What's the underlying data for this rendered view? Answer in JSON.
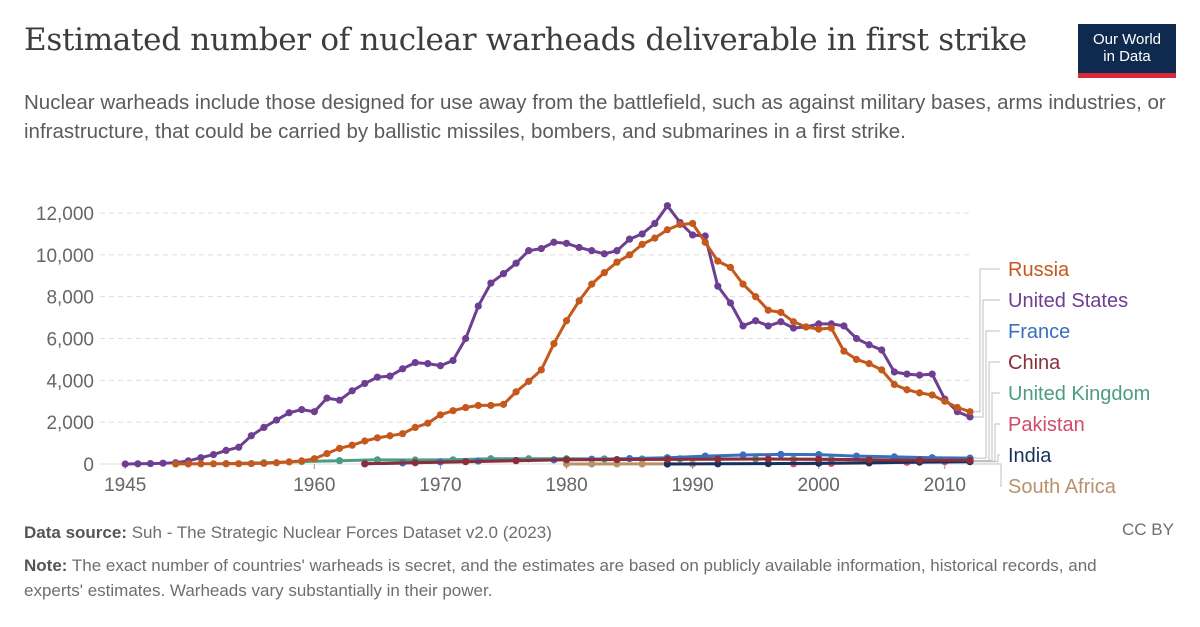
{
  "title": "Estimated number of nuclear warheads deliverable in first strike",
  "logo": {
    "line1": "Our World",
    "line2": "in Data",
    "bg": "#0f2a4f",
    "accent": "#d42a3a"
  },
  "subtitle": "Nuclear warheads include those designed for use away from the battlefield, such as against military bases, arms industries, or infrastructure, that could be carried by ballistic missiles, bombers, and submarines in a first strike.",
  "footer": {
    "source_label": "Data source:",
    "source_text": "Suh - The Strategic Nuclear Forces Dataset v2.0 (2023)",
    "license": "CC BY",
    "note_label": "Note:",
    "note_text": "The exact number of countries' warheads is secret, and the estimates are based on publicly available information, historical records, and experts' estimates. Warheads vary substantially in their power."
  },
  "chart_data": {
    "type": "line",
    "xlim": [
      1943,
      2012
    ],
    "ylim": [
      0,
      12000
    ],
    "x_ticks": [
      {
        "value": 1945,
        "label": "1945"
      },
      {
        "value": 1960,
        "label": "1960"
      },
      {
        "value": 1970,
        "label": "1970"
      },
      {
        "value": 1980,
        "label": "1980"
      },
      {
        "value": 1990,
        "label": "1990"
      },
      {
        "value": 2000,
        "label": "2000"
      },
      {
        "value": 2010,
        "label": "2010"
      }
    ],
    "y_ticks": [
      {
        "value": 0,
        "label": "0"
      },
      {
        "value": 2000,
        "label": "2,000"
      },
      {
        "value": 4000,
        "label": "4,000"
      },
      {
        "value": 6000,
        "label": "6,000"
      },
      {
        "value": 8000,
        "label": "8,000"
      },
      {
        "value": 10000,
        "label": "10,000"
      },
      {
        "value": 12000,
        "label": "12,000"
      }
    ],
    "grid": true,
    "legend": "right",
    "series": [
      {
        "name": "United Kingdom",
        "color": "#4c9c84",
        "x": [
          1953,
          1956,
          1959,
          1962,
          1965,
          1968,
          1971,
          1974,
          1977,
          1980,
          1983,
          1986,
          1989,
          1992,
          1995,
          1998,
          2001,
          2004,
          2007,
          2010,
          2012
        ],
        "y": [
          20,
          60,
          120,
          160,
          200,
          190,
          200,
          250,
          250,
          250,
          240,
          240,
          250,
          250,
          240,
          230,
          220,
          200,
          180,
          160,
          160
        ]
      },
      {
        "name": "France",
        "color": "#3a6fbf",
        "x": [
          1964,
          1967,
          1970,
          1973,
          1976,
          1979,
          1982,
          1985,
          1988,
          1991,
          1994,
          1997,
          2000,
          2003,
          2006,
          2009,
          2012
        ],
        "y": [
          10,
          50,
          100,
          140,
          170,
          200,
          230,
          260,
          300,
          380,
          430,
          460,
          450,
          380,
          340,
          300,
          280
        ]
      },
      {
        "name": "South Africa",
        "color": "#b9916a",
        "x": [
          1980,
          1982,
          1984,
          1986,
          1988,
          1990
        ],
        "y": [
          0,
          0,
          5,
          5,
          5,
          0
        ]
      },
      {
        "name": "Pakistan",
        "color": "#d04a6d",
        "x": [
          1998,
          2001,
          2004,
          2007,
          2010,
          2012
        ],
        "y": [
          10,
          30,
          50,
          80,
          110,
          130
        ]
      },
      {
        "name": "India",
        "color": "#18305c",
        "x": [
          1988,
          1992,
          1996,
          2000,
          2004,
          2008,
          2012
        ],
        "y": [
          0,
          10,
          20,
          40,
          60,
          90,
          110
        ]
      },
      {
        "name": "China",
        "color": "#8a2e3a",
        "x": [
          1964,
          1968,
          1972,
          1976,
          1980,
          1984,
          1988,
          1992,
          1996,
          2000,
          2004,
          2008,
          2012
        ],
        "y": [
          10,
          60,
          110,
          160,
          200,
          210,
          220,
          230,
          240,
          230,
          200,
          180,
          170
        ]
      },
      {
        "name": "United States",
        "color": "#6d3e91",
        "x": [
          1945,
          1946,
          1947,
          1948,
          1949,
          1950,
          1951,
          1952,
          1953,
          1954,
          1955,
          1956,
          1957,
          1958,
          1959,
          1960,
          1961,
          1962,
          1963,
          1964,
          1965,
          1966,
          1967,
          1968,
          1969,
          1970,
          1971,
          1972,
          1973,
          1974,
          1975,
          1976,
          1977,
          1978,
          1979,
          1980,
          1981,
          1982,
          1983,
          1984,
          1985,
          1986,
          1987,
          1988,
          1989,
          1990,
          1991,
          1992,
          1993,
          1994,
          1995,
          1996,
          1997,
          1998,
          1999,
          2000,
          2001,
          2002,
          2003,
          2004,
          2005,
          2006,
          2007,
          2008,
          2009,
          2010,
          2011,
          2012
        ],
        "y": [
          0,
          10,
          20,
          40,
          60,
          150,
          300,
          450,
          650,
          800,
          1350,
          1750,
          2100,
          2450,
          2600,
          2500,
          3150,
          3050,
          3500,
          3850,
          4150,
          4200,
          4550,
          4850,
          4800,
          4700,
          4950,
          6000,
          7550,
          8650,
          9100,
          9600,
          10200,
          10300,
          10600,
          10550,
          10350,
          10200,
          10050,
          10200,
          10750,
          11000,
          11500,
          12350,
          11550,
          10950,
          10900,
          8500,
          7700,
          6600,
          6850,
          6600,
          6800,
          6500,
          6550,
          6700,
          6700,
          6600,
          6000,
          5700,
          5450,
          4400,
          4300,
          4250,
          4300,
          3100,
          2500,
          2250
        ]
      },
      {
        "name": "Russia",
        "color": "#c4581d",
        "x": [
          1949,
          1950,
          1951,
          1952,
          1953,
          1954,
          1955,
          1956,
          1957,
          1958,
          1959,
          1960,
          1961,
          1962,
          1963,
          1964,
          1965,
          1966,
          1967,
          1968,
          1969,
          1970,
          1971,
          1972,
          1973,
          1974,
          1975,
          1976,
          1977,
          1978,
          1979,
          1980,
          1981,
          1982,
          1983,
          1984,
          1985,
          1986,
          1987,
          1988,
          1989,
          1990,
          1991,
          1992,
          1993,
          1994,
          1995,
          1996,
          1997,
          1998,
          1999,
          2000,
          2001,
          2002,
          2003,
          2004,
          2005,
          2006,
          2007,
          2008,
          2009,
          2010,
          2011,
          2012
        ],
        "y": [
          5,
          5,
          10,
          10,
          10,
          15,
          20,
          30,
          60,
          100,
          150,
          250,
          500,
          750,
          900,
          1100,
          1250,
          1350,
          1450,
          1750,
          1950,
          2350,
          2550,
          2700,
          2800,
          2800,
          2850,
          3450,
          3950,
          4500,
          5750,
          6850,
          7800,
          8600,
          9150,
          9650,
          10000,
          10500,
          10800,
          11200,
          11450,
          11500,
          10600,
          9700,
          9400,
          8600,
          8000,
          7350,
          7250,
          6800,
          6550,
          6450,
          6500,
          5400,
          5000,
          4800,
          4500,
          3800,
          3550,
          3400,
          3300,
          3000,
          2700,
          2500
        ]
      }
    ],
    "legend_entries": [
      {
        "name": "Russia",
        "color": "#c4581d"
      },
      {
        "name": "United States",
        "color": "#6d3e91"
      },
      {
        "name": "France",
        "color": "#3a6fbf"
      },
      {
        "name": "China",
        "color": "#8a2e3a"
      },
      {
        "name": "United Kingdom",
        "color": "#4c9c84"
      },
      {
        "name": "Pakistan",
        "color": "#d04a6d"
      },
      {
        "name": "India",
        "color": "#18305c"
      },
      {
        "name": "South Africa",
        "color": "#b9916a"
      }
    ]
  }
}
